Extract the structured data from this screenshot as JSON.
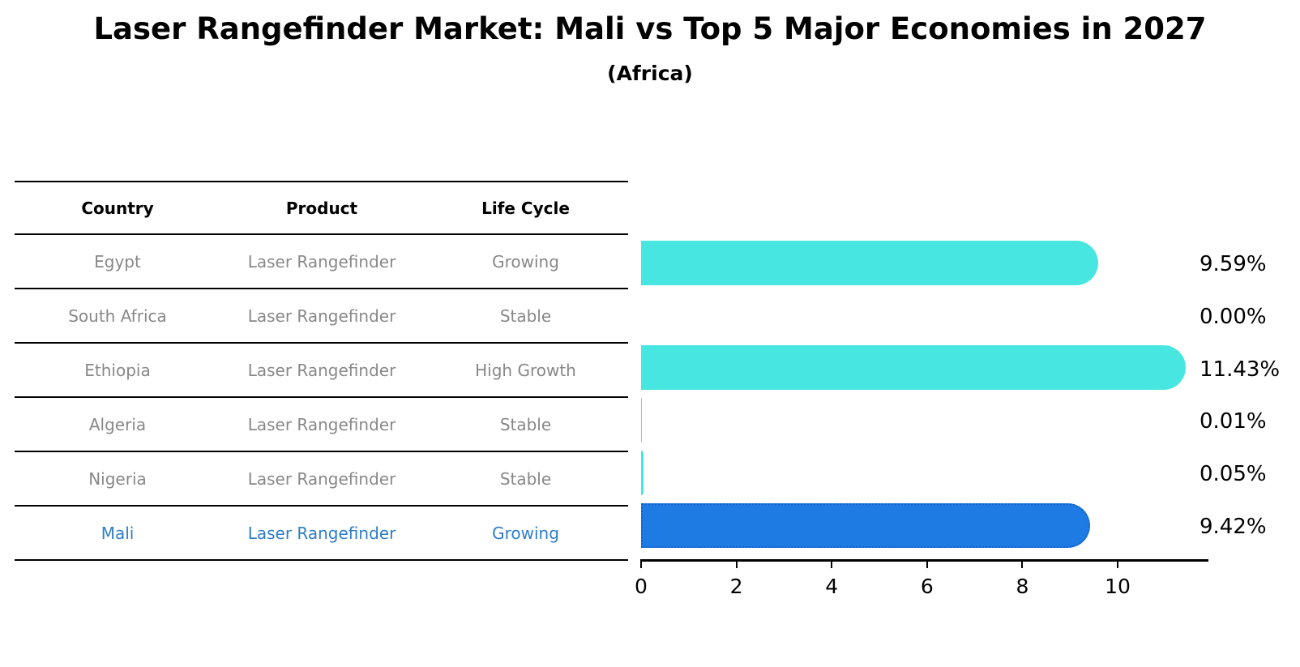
{
  "title": "Laser Rangefinder Market: Mali vs Top 5 Major Economies in 2027",
  "subtitle": "(Africa)",
  "table": {
    "headers": [
      "Country",
      "Product",
      "Life Cycle"
    ],
    "rows": [
      {
        "country": "Egypt",
        "product": "Laser Rangefinder",
        "life_cycle": "Growing",
        "highlight": false
      },
      {
        "country": "South Africa",
        "product": "Laser Rangefinder",
        "life_cycle": "Stable",
        "highlight": false
      },
      {
        "country": "Ethiopia",
        "product": "Laser Rangefinder",
        "life_cycle": "High Growth",
        "highlight": false
      },
      {
        "country": "Algeria",
        "product": "Laser Rangefinder",
        "life_cycle": "Stable",
        "highlight": false
      },
      {
        "country": "Nigeria",
        "product": "Laser Rangefinder",
        "life_cycle": "Stable",
        "highlight": false
      },
      {
        "country": "Mali",
        "product": "Laser Rangefinder",
        "life_cycle": "Growing",
        "highlight": true
      }
    ]
  },
  "chart_data": {
    "type": "bar",
    "orientation": "horizontal",
    "title": "Laser Rangefinder Market: Mali vs Top 5 Major Economies in 2027 (Africa)",
    "categories": [
      "Egypt",
      "South Africa",
      "Ethiopia",
      "Algeria",
      "Nigeria",
      "Mali"
    ],
    "values": [
      9.59,
      0.0,
      11.43,
      0.01,
      0.05,
      9.42
    ],
    "value_labels": [
      "9.59%",
      "0.00%",
      "11.43%",
      "0.01%",
      "0.05%",
      "9.42%"
    ],
    "x_ticks": [
      0,
      2,
      4,
      6,
      8,
      10
    ],
    "xlim": [
      0,
      11.9
    ],
    "xlabel": "",
    "ylabel": "",
    "grid": false,
    "legend": "none",
    "bar_color": "#47E6E0",
    "highlight_color": "#1E7BE3",
    "highlight_border_color": "#1462C8",
    "highlight_index": 5
  },
  "colors": {
    "background": "#FFFFFF",
    "table_line": "#000000",
    "table_text_muted": "#888888",
    "table_text_highlight": "#2E7DC8",
    "axis": "#000000",
    "label_text": "#000000"
  }
}
